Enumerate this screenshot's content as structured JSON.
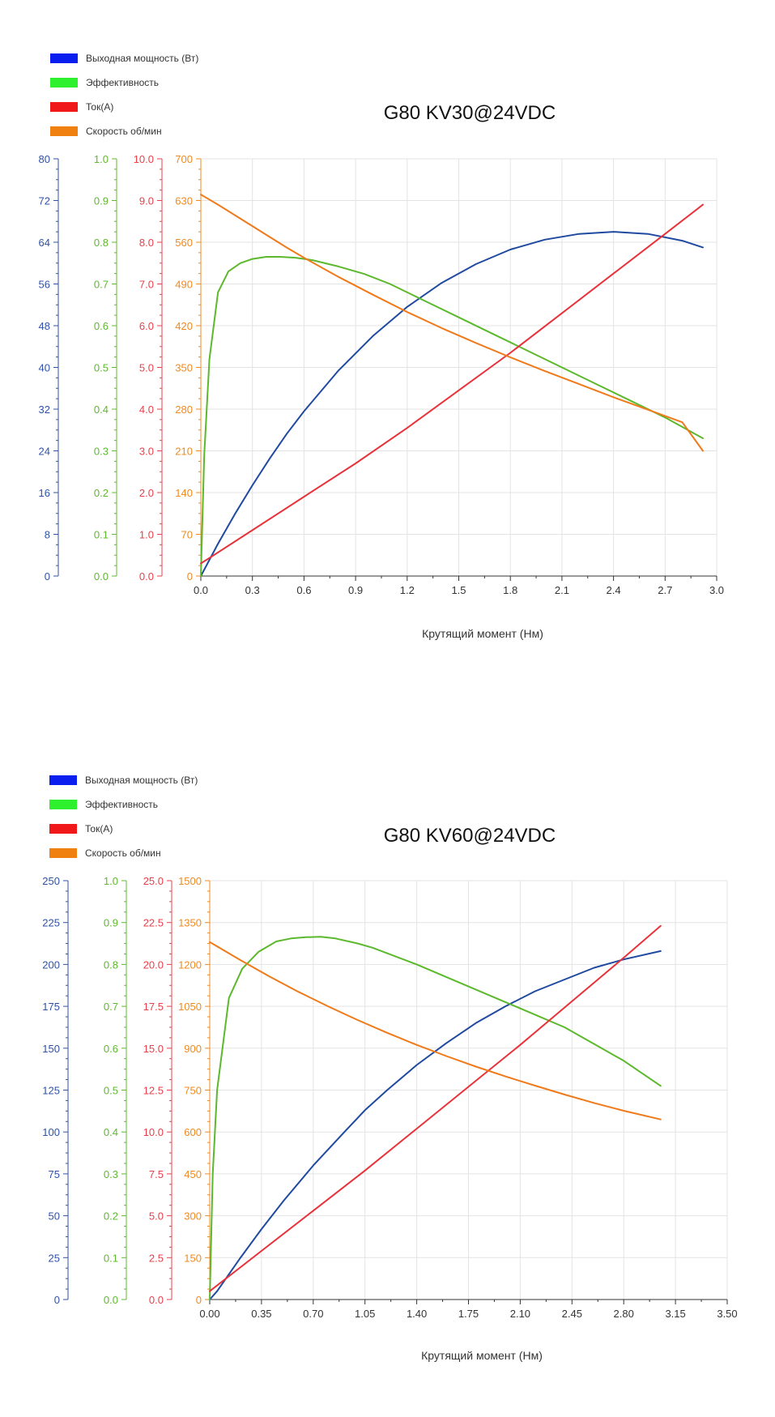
{
  "charts": [
    {
      "title": "G80 KV30@24VDC",
      "legend": [
        {
          "label": "Выходная мощность (Вт)",
          "color": "#0a1ef0"
        },
        {
          "label": "Эффективность",
          "color": "#2ef02e"
        },
        {
          "label": "Ток(А)",
          "color": "#f01818"
        },
        {
          "label": "Скорость об/мин",
          "color": "#f08010"
        }
      ],
      "xlabel": "Крутящий момент (Нм)"
    },
    {
      "title": "G80 KV60@24VDC",
      "legend": [
        {
          "label": "Выходная мощность (Вт)",
          "color": "#0a1ef0"
        },
        {
          "label": "Эффективность",
          "color": "#2ef02e"
        },
        {
          "label": "Ток(А)",
          "color": "#f01818"
        },
        {
          "label": "Скорость об/мин",
          "color": "#f08010"
        }
      ],
      "xlabel": "Крутящий момент (Нм)"
    }
  ],
  "chart_data": [
    {
      "type": "line",
      "title": "G80 KV30@24VDC",
      "xlabel": "Крутящий момент (Нм)",
      "grid": true,
      "legend_position": "top-left",
      "x_axis": {
        "range": [
          0,
          3.0
        ],
        "ticks": [
          "0.0",
          "0.3",
          "0.6",
          "0.9",
          "1.2",
          "1.5",
          "1.8",
          "2.1",
          "2.4",
          "2.7",
          "3.0"
        ]
      },
      "y_axes": [
        {
          "name": "power",
          "color": "#2f52a8",
          "range": [
            0,
            80
          ],
          "ticks": [
            "0",
            "8",
            "16",
            "24",
            "32",
            "40",
            "48",
            "56",
            "64",
            "72",
            "80"
          ]
        },
        {
          "name": "efficiency",
          "color": "#5fb82f",
          "range": [
            0,
            1.0
          ],
          "ticks": [
            "0.0",
            "0.1",
            "0.2",
            "0.3",
            "0.4",
            "0.5",
            "0.6",
            "0.7",
            "0.8",
            "0.9",
            "1.0"
          ]
        },
        {
          "name": "current",
          "color": "#e8404a",
          "range": [
            0,
            10.0
          ],
          "ticks": [
            "0.0",
            "1.0",
            "2.0",
            "3.0",
            "4.0",
            "5.0",
            "6.0",
            "7.0",
            "8.0",
            "9.0",
            "10.0"
          ]
        },
        {
          "name": "speed",
          "color": "#f08a20",
          "range": [
            0,
            700
          ],
          "ticks": [
            "0",
            "70",
            "140",
            "210",
            "280",
            "350",
            "420",
            "490",
            "560",
            "630",
            "700"
          ]
        }
      ],
      "series": [
        {
          "name": "Выходная мощность (Вт)",
          "axis": "power",
          "color": "#1f4aa0",
          "x": [
            0,
            0.1,
            0.2,
            0.3,
            0.4,
            0.5,
            0.6,
            0.8,
            1.0,
            1.2,
            1.4,
            1.6,
            1.8,
            2.0,
            2.2,
            2.4,
            2.6,
            2.8,
            2.92
          ],
          "y": [
            0,
            6.2,
            12.0,
            17.4,
            22.5,
            27.3,
            31.6,
            39.4,
            46.0,
            51.6,
            56.2,
            59.8,
            62.6,
            64.5,
            65.6,
            66.0,
            65.6,
            64.3,
            63.0
          ]
        },
        {
          "name": "Эффективность",
          "axis": "efficiency",
          "color": "#5cb82c",
          "x": [
            0,
            0.02,
            0.05,
            0.1,
            0.16,
            0.23,
            0.3,
            0.38,
            0.46,
            0.55,
            0.65,
            0.8,
            0.95,
            1.1,
            1.3,
            1.5,
            1.7,
            1.9,
            2.1,
            2.3,
            2.5,
            2.7,
            2.92
          ],
          "y": [
            0,
            0.29,
            0.52,
            0.68,
            0.73,
            0.75,
            0.76,
            0.765,
            0.765,
            0.763,
            0.757,
            0.742,
            0.724,
            0.7,
            0.66,
            0.62,
            0.58,
            0.54,
            0.5,
            0.46,
            0.42,
            0.38,
            0.33
          ]
        },
        {
          "name": "Ток(А)",
          "axis": "current",
          "color": "#e8323a",
          "x": [
            0,
            0.3,
            0.6,
            0.9,
            1.2,
            1.5,
            1.8,
            2.1,
            2.4,
            2.7,
            2.92
          ],
          "y": [
            0.3,
            1.1,
            1.9,
            2.7,
            3.55,
            4.45,
            5.35,
            6.3,
            7.25,
            8.2,
            8.9
          ]
        },
        {
          "name": "Скорость об/мин",
          "axis": "speed",
          "color": "#f07a1a",
          "x": [
            0,
            0.1,
            0.2,
            0.3,
            0.4,
            0.5,
            0.6,
            0.8,
            1.0,
            1.2,
            1.4,
            1.6,
            1.8,
            2.0,
            2.2,
            2.4,
            2.6,
            2.8,
            2.92
          ],
          "y": [
            640,
            623,
            605,
            587,
            569,
            551,
            534,
            502,
            472,
            443,
            416,
            391,
            367,
            344,
            322,
            300,
            279,
            258,
            210
          ]
        }
      ]
    },
    {
      "type": "line",
      "title": "G80 KV60@24VDC",
      "xlabel": "Крутящий момент (Нм)",
      "grid": true,
      "legend_position": "top-left",
      "x_axis": {
        "range": [
          0,
          3.5
        ],
        "ticks": [
          "0.00",
          "0.35",
          "0.70",
          "1.05",
          "1.40",
          "1.75",
          "2.10",
          "2.45",
          "2.80",
          "3.15",
          "3.50"
        ]
      },
      "y_axes": [
        {
          "name": "power",
          "color": "#2f52a8",
          "range": [
            0,
            250
          ],
          "ticks": [
            "0",
            "25",
            "50",
            "75",
            "100",
            "125",
            "150",
            "175",
            "200",
            "225",
            "250"
          ]
        },
        {
          "name": "efficiency",
          "color": "#5fb82f",
          "range": [
            0,
            1.0
          ],
          "ticks": [
            "0.0",
            "0.1",
            "0.2",
            "0.3",
            "0.4",
            "0.5",
            "0.6",
            "0.7",
            "0.8",
            "0.9",
            "1.0"
          ]
        },
        {
          "name": "current",
          "color": "#e8404a",
          "range": [
            0,
            25.0
          ],
          "ticks": [
            "0.0",
            "2.5",
            "5.0",
            "7.5",
            "10.0",
            "12.5",
            "15.0",
            "17.5",
            "20.0",
            "22.5",
            "25.0"
          ]
        },
        {
          "name": "speed",
          "color": "#f08a20",
          "range": [
            0,
            1500
          ],
          "ticks": [
            "0",
            "150",
            "300",
            "450",
            "600",
            "750",
            "900",
            "1050",
            "1200",
            "1350",
            "1500"
          ]
        }
      ],
      "series": [
        {
          "name": "Выходная мощность (Вт)",
          "axis": "power",
          "color": "#1f4aa0",
          "x": [
            0,
            0.05,
            0.2,
            0.35,
            0.5,
            0.7,
            0.9,
            1.05,
            1.2,
            1.4,
            1.6,
            1.8,
            2.0,
            2.2,
            2.4,
            2.6,
            2.8,
            3.05
          ],
          "y": [
            0,
            5,
            24,
            42,
            59,
            80,
            99,
            113,
            125,
            140,
            153,
            165,
            175,
            184,
            191,
            198,
            203,
            208
          ]
        },
        {
          "name": "Эффективность",
          "axis": "efficiency",
          "color": "#5cb82c",
          "x": [
            0,
            0.02,
            0.05,
            0.13,
            0.22,
            0.33,
            0.45,
            0.55,
            0.65,
            0.75,
            0.85,
            1.0,
            1.1,
            1.25,
            1.4,
            1.6,
            1.8,
            2.0,
            2.2,
            2.4,
            2.6,
            2.8,
            3.05
          ],
          "y": [
            0,
            0.3,
            0.5,
            0.72,
            0.79,
            0.83,
            0.855,
            0.862,
            0.865,
            0.866,
            0.862,
            0.85,
            0.84,
            0.82,
            0.8,
            0.77,
            0.74,
            0.71,
            0.68,
            0.65,
            0.61,
            0.57,
            0.51
          ]
        },
        {
          "name": "Ток(А)",
          "axis": "current",
          "color": "#e8323a",
          "x": [
            0,
            0.35,
            0.7,
            1.05,
            1.4,
            1.75,
            2.1,
            2.45,
            2.8,
            3.05
          ],
          "y": [
            0.5,
            2.9,
            5.3,
            7.7,
            10.2,
            12.7,
            15.2,
            17.8,
            20.4,
            22.3
          ]
        },
        {
          "name": "Скорость об/мин",
          "axis": "speed",
          "color": "#f07a1a",
          "x": [
            0,
            0.2,
            0.4,
            0.6,
            0.8,
            1.0,
            1.2,
            1.4,
            1.6,
            1.8,
            2.0,
            2.2,
            2.4,
            2.6,
            2.8,
            3.05
          ],
          "y": [
            1280,
            1218,
            1158,
            1102,
            1050,
            1001,
            955,
            912,
            872,
            834,
            799,
            766,
            734,
            704,
            676,
            645
          ]
        }
      ]
    }
  ]
}
